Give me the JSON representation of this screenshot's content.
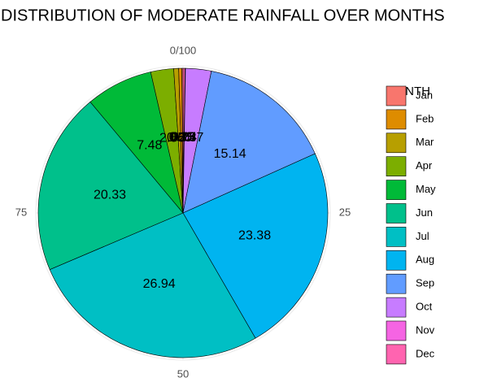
{
  "chart_data": {
    "type": "pie",
    "title": "DISTRIBUTION OF MODERATE RAINFALL OVER MONTHS",
    "legend_title": "MONTH",
    "categories": [
      "Jan",
      "Feb",
      "Mar",
      "Apr",
      "May",
      "Jun",
      "Jul",
      "Aug",
      "Sep",
      "Oct",
      "Nov",
      "Dec"
    ],
    "values": [
      0.13,
      0.35,
      0.55,
      2.56,
      7.48,
      20.33,
      26.94,
      23.38,
      15.14,
      2.87,
      0.04,
      0.23
    ],
    "colors": [
      "#F8766D",
      "#DE8C00",
      "#B79F00",
      "#7CAE00",
      "#00BA38",
      "#00C08B",
      "#00BFC4",
      "#00B4F0",
      "#619CFF",
      "#C77CFF",
      "#F564E3",
      "#FF64B0"
    ],
    "xlim": [
      0,
      100
    ],
    "xticks": [
      {
        "value": 0,
        "label": "0/100"
      },
      25,
      50,
      75
    ],
    "legend": "right"
  }
}
